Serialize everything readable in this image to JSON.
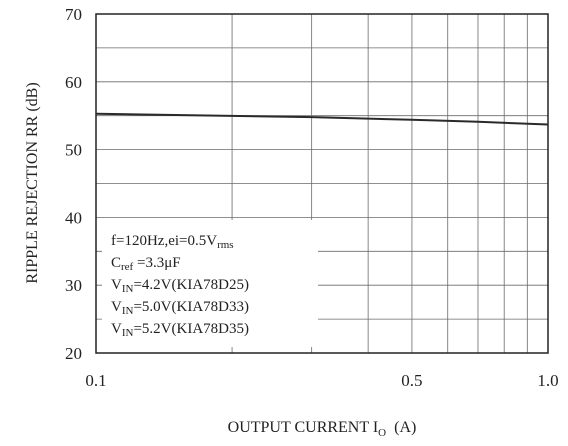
{
  "chart_data": {
    "type": "line",
    "xlabel": {
      "main": "OUTPUT CURRENT I",
      "sub": "O",
      "unit": "(A)"
    },
    "ylabel": "RIPPLE REJECTION RR (dB)",
    "xlim": [
      0.1,
      1.0
    ],
    "ylim": [
      20,
      70
    ],
    "x_ticks": [
      0.1,
      0.5,
      1.0
    ],
    "x_tick_labels": [
      "0.1",
      "0.5",
      "1.0"
    ],
    "y_ticks": [
      20,
      30,
      40,
      50,
      60,
      70
    ],
    "y_tick_labels": [
      "20",
      "30",
      "40",
      "50",
      "60",
      "70"
    ],
    "grid": true,
    "series": [
      {
        "x": [
          0.1,
          0.3,
          0.5,
          0.7,
          1.0
        ],
        "y": [
          55.3,
          54.8,
          54.4,
          54.1,
          53.7
        ]
      }
    ],
    "annotation": {
      "line1": "f=120Hz,ei=0.5V",
      "line1_sub": "rms",
      "line2_main": "C",
      "line2_sub": "ref",
      "line2_rest": " =3.3μF",
      "line3_main": "V",
      "line3_sub": "IN",
      "line3_rest": "=4.2V(KIA78D25)",
      "line4_main": "V",
      "line4_sub": "IN",
      "line4_rest": "=5.0V(KIA78D33)",
      "line5_main": "V",
      "line5_sub": "IN",
      "line5_rest": "=5.2V(KIA78D35)"
    }
  }
}
